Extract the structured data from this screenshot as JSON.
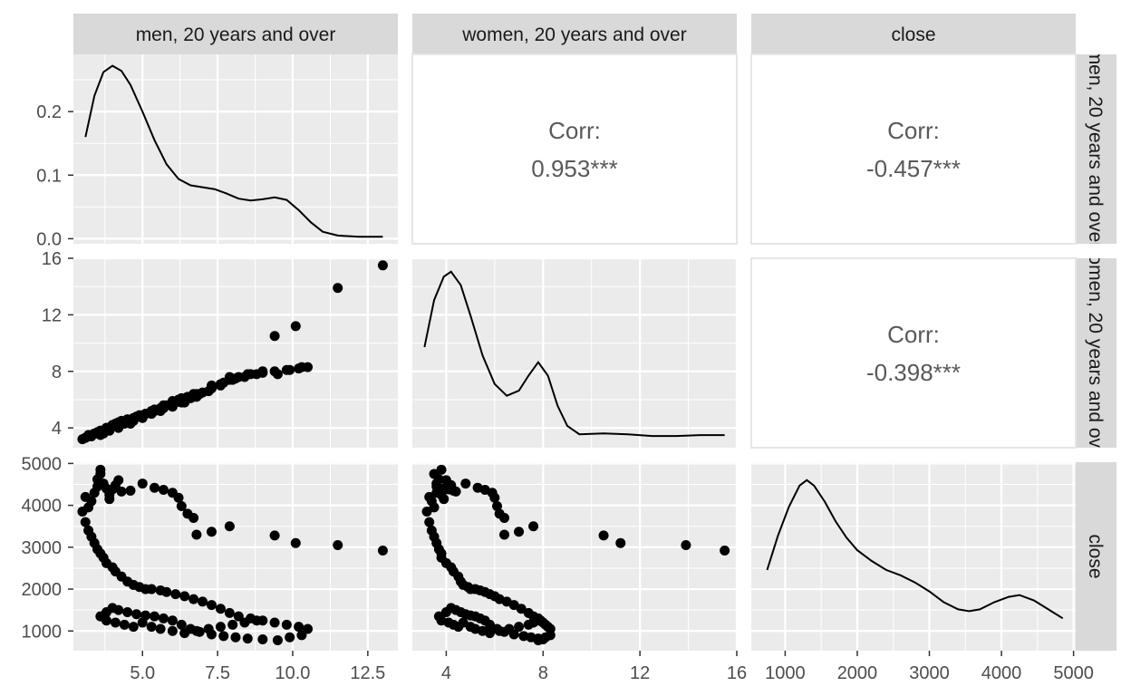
{
  "variables": [
    "men, 20 years and over",
    "women, 20 years and over",
    "close"
  ],
  "colors": {
    "panel_bg": "#ebebeb",
    "grid_major": "#ffffff",
    "strip_bg": "#d9d9d9",
    "ink": "#000000",
    "corr_text": "#595959",
    "tick_text": "#4d4d4d",
    "blank_panel_border": "#e6e6e6"
  },
  "chart_data": {
    "type": "scatter",
    "layout": "pairs-matrix",
    "grid": true,
    "columns": [
      "men, 20 years and over",
      "women, 20 years and over",
      "close"
    ],
    "axes": {
      "men": {
        "lim": [
          2.7,
          13.5
        ],
        "ticks": [
          5.0,
          7.5,
          10.0,
          12.5
        ],
        "tick_labels": [
          "5.0",
          "7.5",
          "10.0",
          "12.5"
        ]
      },
      "women": {
        "lim": [
          2.6,
          16.0
        ],
        "ticks": [
          4,
          8,
          12,
          16
        ],
        "tick_labels": [
          "4",
          "8",
          "12",
          "16"
        ]
      },
      "close": {
        "lim": [
          530,
          5030
        ],
        "ticks": [
          1000,
          2000,
          3000,
          4000,
          5000
        ],
        "tick_labels": [
          "1000",
          "2000",
          "3000",
          "4000",
          "5000"
        ]
      },
      "density_men_y": {
        "lim": [
          -0.008,
          0.29
        ],
        "ticks": [
          0.0,
          0.1,
          0.2
        ],
        "tick_labels": [
          "0.0",
          "0.1",
          "0.2"
        ]
      }
    },
    "correlations": [
      {
        "row": 0,
        "col": 1,
        "label": "Corr:",
        "value": "0.953***"
      },
      {
        "row": 0,
        "col": 2,
        "label": "Corr:",
        "value": "-0.457***"
      },
      {
        "row": 1,
        "col": 2,
        "label": "Corr:",
        "value": "-0.398***"
      }
    ],
    "density_men": [
      [
        3.1,
        0.16
      ],
      [
        3.4,
        0.225
      ],
      [
        3.7,
        0.262
      ],
      [
        4.0,
        0.272
      ],
      [
        4.3,
        0.264
      ],
      [
        4.6,
        0.242
      ],
      [
        5.0,
        0.2
      ],
      [
        5.4,
        0.155
      ],
      [
        5.8,
        0.117
      ],
      [
        6.2,
        0.094
      ],
      [
        6.6,
        0.084
      ],
      [
        7.0,
        0.081
      ],
      [
        7.4,
        0.078
      ],
      [
        7.8,
        0.071
      ],
      [
        8.2,
        0.063
      ],
      [
        8.6,
        0.06
      ],
      [
        9.0,
        0.062
      ],
      [
        9.4,
        0.065
      ],
      [
        9.8,
        0.061
      ],
      [
        10.2,
        0.045
      ],
      [
        10.6,
        0.026
      ],
      [
        11.0,
        0.011
      ],
      [
        11.5,
        0.005
      ],
      [
        12.2,
        0.003
      ],
      [
        13.0,
        0.003
      ]
    ],
    "density_women": [
      [
        3.1,
        0.55
      ],
      [
        3.5,
        0.83
      ],
      [
        3.9,
        0.97
      ],
      [
        4.2,
        1.0
      ],
      [
        4.6,
        0.92
      ],
      [
        5.0,
        0.74
      ],
      [
        5.5,
        0.5
      ],
      [
        6.0,
        0.33
      ],
      [
        6.5,
        0.26
      ],
      [
        7.0,
        0.29
      ],
      [
        7.4,
        0.38
      ],
      [
        7.8,
        0.46
      ],
      [
        8.2,
        0.38
      ],
      [
        8.6,
        0.2
      ],
      [
        9.0,
        0.08
      ],
      [
        9.5,
        0.03
      ],
      [
        10.5,
        0.035
      ],
      [
        11.5,
        0.03
      ],
      [
        12.5,
        0.02
      ],
      [
        13.5,
        0.02
      ],
      [
        14.5,
        0.025
      ],
      [
        15.5,
        0.025
      ]
    ],
    "density_close": [
      [
        750,
        0.45
      ],
      [
        900,
        0.64
      ],
      [
        1050,
        0.8
      ],
      [
        1200,
        0.92
      ],
      [
        1300,
        0.95
      ],
      [
        1400,
        0.92
      ],
      [
        1550,
        0.83
      ],
      [
        1700,
        0.72
      ],
      [
        1850,
        0.63
      ],
      [
        2000,
        0.56
      ],
      [
        2200,
        0.5
      ],
      [
        2400,
        0.45
      ],
      [
        2600,
        0.42
      ],
      [
        2800,
        0.38
      ],
      [
        3000,
        0.33
      ],
      [
        3200,
        0.27
      ],
      [
        3400,
        0.23
      ],
      [
        3550,
        0.22
      ],
      [
        3700,
        0.23
      ],
      [
        3900,
        0.27
      ],
      [
        4100,
        0.3
      ],
      [
        4250,
        0.31
      ],
      [
        4450,
        0.28
      ],
      [
        4650,
        0.23
      ],
      [
        4850,
        0.18
      ]
    ],
    "points": [
      [
        3.1,
        3.3,
        4200
      ],
      [
        3.2,
        3.5,
        3950
      ],
      [
        3.3,
        3.4,
        4100
      ],
      [
        3.4,
        3.6,
        4300
      ],
      [
        3.5,
        3.6,
        4450
      ],
      [
        3.5,
        3.7,
        4620
      ],
      [
        3.6,
        3.5,
        4750
      ],
      [
        3.6,
        3.8,
        4850
      ],
      [
        3.7,
        3.6,
        4520
      ],
      [
        3.8,
        3.9,
        4400
      ],
      [
        3.9,
        3.8,
        4250
      ],
      [
        4.0,
        4.1,
        4380
      ],
      [
        4.1,
        4.2,
        4480
      ],
      [
        4.2,
        4.0,
        4600
      ],
      [
        4.3,
        4.4,
        4330
      ],
      [
        3.0,
        3.2,
        3850
      ],
      [
        3.1,
        3.3,
        3600
      ],
      [
        3.2,
        3.4,
        3400
      ],
      [
        3.3,
        3.5,
        3250
      ],
      [
        3.4,
        3.6,
        3100
      ],
      [
        3.5,
        3.7,
        2950
      ],
      [
        3.6,
        3.8,
        2850
      ],
      [
        3.7,
        3.8,
        2750
      ],
      [
        3.8,
        4.0,
        2620
      ],
      [
        4.0,
        4.2,
        2520
      ],
      [
        4.1,
        4.3,
        2420
      ],
      [
        4.3,
        4.5,
        2300
      ],
      [
        4.5,
        4.6,
        2180
      ],
      [
        4.7,
        4.7,
        2100
      ],
      [
        4.9,
        4.9,
        2050
      ],
      [
        5.1,
        5.0,
        2000
      ],
      [
        5.3,
        5.2,
        2000
      ],
      [
        5.6,
        5.4,
        1970
      ],
      [
        5.8,
        5.6,
        1930
      ],
      [
        6.1,
        5.8,
        1880
      ],
      [
        6.4,
        6.0,
        1830
      ],
      [
        6.7,
        6.2,
        1760
      ],
      [
        7.0,
        6.5,
        1700
      ],
      [
        7.3,
        6.8,
        1620
      ],
      [
        7.6,
        7.1,
        1530
      ],
      [
        7.9,
        7.4,
        1430
      ],
      [
        8.2,
        7.6,
        1350
      ],
      [
        8.6,
        7.8,
        1300
      ],
      [
        9.0,
        7.9,
        1250
      ],
      [
        9.4,
        8.0,
        1200
      ],
      [
        9.8,
        8.1,
        1150
      ],
      [
        10.2,
        8.2,
        1100
      ],
      [
        10.5,
        8.3,
        1050
      ],
      [
        3.8,
        4.0,
        1450
      ],
      [
        4.0,
        4.2,
        1550
      ],
      [
        4.2,
        4.4,
        1500
      ],
      [
        4.5,
        4.6,
        1450
      ],
      [
        4.8,
        4.8,
        1400
      ],
      [
        5.1,
        5.0,
        1370
      ],
      [
        5.4,
        5.2,
        1350
      ],
      [
        5.7,
        5.4,
        1300
      ],
      [
        6.0,
        5.6,
        1250
      ],
      [
        6.3,
        5.8,
        1150
      ],
      [
        6.6,
        6.1,
        1050
      ],
      [
        6.9,
        6.4,
        980
      ],
      [
        7.3,
        6.8,
        920
      ],
      [
        7.7,
        7.2,
        880
      ],
      [
        8.1,
        7.5,
        850
      ],
      [
        8.5,
        7.8,
        820
      ],
      [
        9.0,
        8.0,
        800
      ],
      [
        9.5,
        7.8,
        780
      ],
      [
        9.9,
        8.1,
        850
      ],
      [
        10.3,
        8.3,
        900
      ],
      [
        3.6,
        3.7,
        1350
      ],
      [
        3.8,
        3.8,
        1250
      ],
      [
        4.1,
        4.1,
        1200
      ],
      [
        4.4,
        4.3,
        1150
      ],
      [
        4.7,
        4.5,
        1100
      ],
      [
        5.0,
        4.7,
        1200
      ],
      [
        5.3,
        5.0,
        1100
      ],
      [
        5.6,
        5.2,
        1050
      ],
      [
        6.0,
        5.5,
        1000
      ],
      [
        6.4,
        5.8,
        950
      ],
      [
        6.8,
        6.2,
        1000
      ],
      [
        7.2,
        6.6,
        1050
      ],
      [
        7.6,
        7.0,
        1100
      ],
      [
        8.0,
        7.4,
        1150
      ],
      [
        8.4,
        7.6,
        1200
      ],
      [
        8.8,
        7.8,
        1250
      ],
      [
        5.0,
        4.8,
        4520
      ],
      [
        5.4,
        5.3,
        4420
      ],
      [
        5.7,
        5.6,
        4370
      ],
      [
        6.0,
        5.9,
        4300
      ],
      [
        6.2,
        6.0,
        4180
      ],
      [
        6.3,
        6.1,
        3980
      ],
      [
        6.5,
        6.2,
        3800
      ],
      [
        6.7,
        6.4,
        3700
      ],
      [
        6.8,
        6.4,
        3300
      ],
      [
        7.3,
        7.0,
        3370
      ],
      [
        7.9,
        7.6,
        3500
      ],
      [
        9.4,
        10.5,
        3280
      ],
      [
        10.1,
        11.2,
        3100
      ],
      [
        11.5,
        13.9,
        3050
      ],
      [
        13.0,
        15.5,
        2920
      ],
      [
        4.6,
        4.3,
        4350
      ],
      [
        3.9,
        3.9,
        4150
      ]
    ]
  }
}
